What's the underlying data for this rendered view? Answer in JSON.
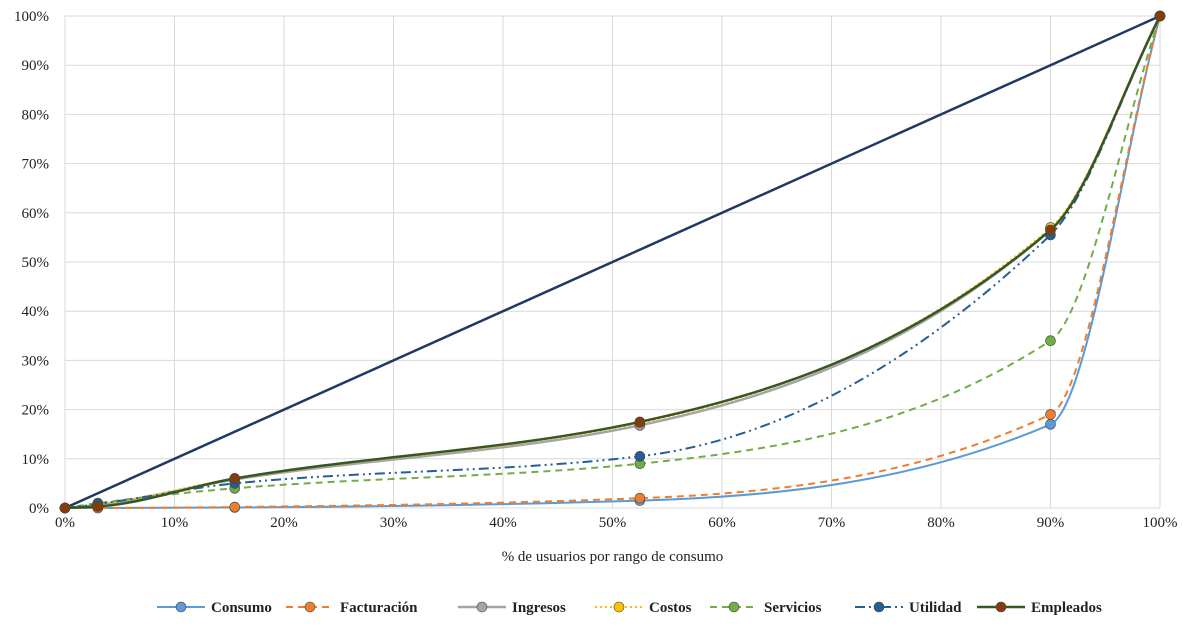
{
  "chart_data": {
    "type": "line",
    "title": "",
    "xlabel": "% de usuarios por rango de consumo",
    "ylabel": "",
    "xlim": [
      0,
      100
    ],
    "ylim": [
      0,
      100
    ],
    "x_ticks": [
      "0%",
      "10%",
      "20%",
      "30%",
      "40%",
      "50%",
      "60%",
      "70%",
      "80%",
      "90%",
      "100%"
    ],
    "y_ticks": [
      "0%",
      "10%",
      "20%",
      "30%",
      "40%",
      "50%",
      "60%",
      "70%",
      "80%",
      "90%",
      "100%"
    ],
    "grid": true,
    "legend_position": "bottom",
    "equality_line": {
      "color": "#1f3864",
      "points": [
        [
          0,
          0
        ],
        [
          100,
          100
        ]
      ]
    },
    "series": [
      {
        "name": "Consumo",
        "color": "#5b9bd5",
        "dash": "",
        "width": 2,
        "points": [
          [
            0,
            0
          ],
          [
            3,
            0
          ],
          [
            15.5,
            0.1
          ],
          [
            52.5,
            1.5
          ],
          [
            90,
            17
          ],
          [
            100,
            100
          ]
        ]
      },
      {
        "name": "Facturación",
        "color": "#ed7d31",
        "dash": "7 5",
        "width": 2,
        "points": [
          [
            0,
            0
          ],
          [
            3,
            0
          ],
          [
            15.5,
            0.2
          ],
          [
            52.5,
            2
          ],
          [
            90,
            19
          ],
          [
            100,
            100
          ]
        ]
      },
      {
        "name": "Ingresos",
        "color": "#a5a5a5",
        "dash": "",
        "width": 2.5,
        "points": [
          [
            0,
            0
          ],
          [
            3,
            0.6
          ],
          [
            15.5,
            5.8
          ],
          [
            52.5,
            16.8
          ],
          [
            90,
            56.5
          ],
          [
            100,
            100
          ]
        ]
      },
      {
        "name": "Costos",
        "color": "#ffc000",
        "dash": "2 3",
        "width": 2,
        "points": [
          [
            0,
            0
          ],
          [
            3,
            0.7
          ],
          [
            15.5,
            6
          ],
          [
            52.5,
            17.3
          ],
          [
            90,
            57
          ],
          [
            100,
            100
          ]
        ]
      },
      {
        "name": "Servicios",
        "color": "#70ad47",
        "dash": "7 5",
        "width": 2,
        "points": [
          [
            0,
            0
          ],
          [
            3,
            1
          ],
          [
            15.5,
            4
          ],
          [
            52.5,
            9
          ],
          [
            90,
            34
          ],
          [
            100,
            100
          ]
        ]
      },
      {
        "name": "Utilidad",
        "color": "#255e91",
        "dash": "10 4 2 4 2 4",
        "width": 2,
        "points": [
          [
            0,
            0
          ],
          [
            3,
            0.8
          ],
          [
            15.5,
            5
          ],
          [
            52.5,
            10.5
          ],
          [
            90,
            55.5
          ],
          [
            100,
            100
          ]
        ]
      },
      {
        "name": "Empleados",
        "color": "#375623",
        "dash": "",
        "width": 2.5,
        "marker": "#843c0c",
        "points": [
          [
            0,
            0
          ],
          [
            3,
            0.3
          ],
          [
            15.5,
            6
          ],
          [
            52.5,
            17.5
          ],
          [
            90,
            56.5
          ],
          [
            100,
            100
          ]
        ]
      }
    ]
  }
}
